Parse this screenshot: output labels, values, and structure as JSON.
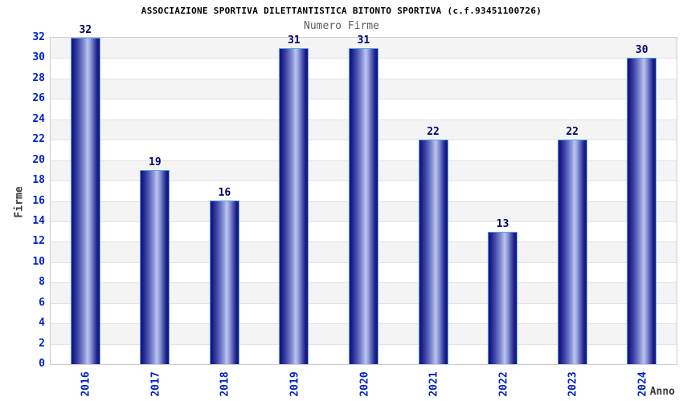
{
  "chart_data": {
    "type": "bar",
    "title": "ASSOCIAZIONE SPORTIVA DILETTANTISTICA BITONTO SPORTIVA (c.f.93451100726)",
    "subtitle": "Numero Firme",
    "xlabel": "Anno",
    "ylabel": "Firme",
    "categories": [
      "2016",
      "2017",
      "2018",
      "2019",
      "2020",
      "2021",
      "2022",
      "2023",
      "2024"
    ],
    "values": [
      32,
      19,
      16,
      31,
      31,
      22,
      13,
      22,
      30
    ],
    "bar_value_labels": [
      "32",
      "19",
      "16",
      "31",
      "31",
      "22",
      "13",
      "22",
      "30"
    ],
    "ylim": [
      0,
      32
    ],
    "ytick_step": 2,
    "yticks": [
      0,
      2,
      4,
      6,
      8,
      10,
      12,
      14,
      16,
      18,
      20,
      22,
      24,
      26,
      28,
      30,
      32
    ],
    "grid": "horizontal-bands-alternating",
    "legend": "none"
  },
  "colors": {
    "background": "#ffffff",
    "title": "#000000",
    "subtitle": "#5a5a5a",
    "axis_title": "#3a3a3a",
    "tick_label_blue": "#0022cc",
    "value_label_navy": "#000066",
    "bar_dark": "#12127e",
    "bar_light": "#bdc5ee",
    "bar_border": "#58a8e8",
    "band_gray": "#f4f4f4",
    "band_white": "#ffffff",
    "gridline": "#e3e3e3",
    "plot_border": "#cccccc"
  }
}
